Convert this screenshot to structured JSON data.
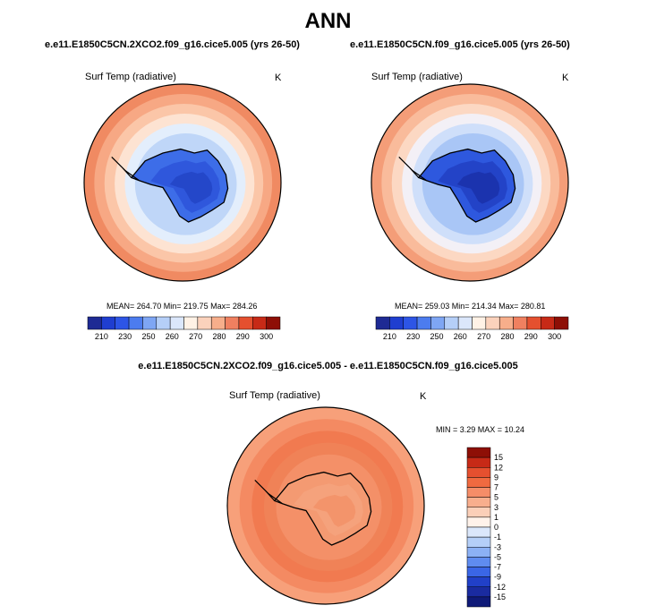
{
  "page": {
    "title": "ANN"
  },
  "chart_data": [
    {
      "type": "heatmap",
      "projection": "south-polar-stereographic",
      "title": "e.e11.E1850C5CN.2XCO2.f09_g16.cice5.005 (yrs 26-50)",
      "variable": "Surf Temp (radiative)",
      "units": "K",
      "stats": {
        "mean": 264.7,
        "min": 219.75,
        "max": 284.26
      },
      "stats_text": "MEAN= 264.70  Min= 219.75  Max= 284.26",
      "levels": [
        210,
        230,
        250,
        260,
        270,
        280,
        290,
        300
      ],
      "level_labels": [
        "210",
        "230",
        "250",
        "260",
        "270",
        "280",
        "290",
        "300"
      ],
      "colorbar_colors": [
        "#1e2a94",
        "#1f3ed0",
        "#2d55e6",
        "#4c7cef",
        "#7ea6f4",
        "#b5cff8",
        "#dbe7fb",
        "#fff2e6",
        "#fbd2bc",
        "#f7ae8b",
        "#f08060",
        "#e5502f",
        "#c72a17",
        "#8e0f06"
      ],
      "colorbar_placement": "bottom",
      "rings": [
        {
          "color": "#f08a62"
        },
        {
          "color": "#f7a884"
        },
        {
          "color": "#fbc6a8"
        },
        {
          "color": "#fde3d2"
        },
        {
          "color": "#e3eefc"
        },
        {
          "color": "#bfd6f8"
        }
      ],
      "continent_colors": [
        "#3d6de8",
        "#2f57dc",
        "#2447c9"
      ]
    },
    {
      "type": "heatmap",
      "projection": "south-polar-stereographic",
      "title": "e.e11.E1850C5CN.f09_g16.cice5.005 (yrs 26-50)",
      "variable": "Surf Temp (radiative)",
      "units": "K",
      "stats": {
        "mean": 259.03,
        "min": 214.34,
        "max": 280.81
      },
      "stats_text": "MEAN= 259.03  Min= 214.34  Max= 280.81",
      "levels": [
        210,
        230,
        250,
        260,
        270,
        280,
        290,
        300
      ],
      "level_labels": [
        "210",
        "230",
        "250",
        "260",
        "270",
        "280",
        "290",
        "300"
      ],
      "colorbar_colors": [
        "#1e2a94",
        "#1f3ed0",
        "#2d55e6",
        "#4c7cef",
        "#7ea6f4",
        "#b5cff8",
        "#dbe7fb",
        "#fff2e6",
        "#fbd2bc",
        "#f7ae8b",
        "#f08060",
        "#e5502f",
        "#c72a17",
        "#8e0f06"
      ],
      "colorbar_placement": "bottom",
      "rings": [
        {
          "color": "#f49d78"
        },
        {
          "color": "#f9bb9b"
        },
        {
          "color": "#fcd8c3"
        },
        {
          "color": "#f3f0f6"
        },
        {
          "color": "#cfdffa"
        },
        {
          "color": "#a9c6f6"
        }
      ],
      "continent_colors": [
        "#2e58de",
        "#2343c7",
        "#1b33ae"
      ]
    },
    {
      "type": "heatmap",
      "projection": "south-polar-stereographic",
      "title": "e.e11.E1850C5CN.2XCO2.f09_g16.cice5.005 - e.e11.E1850C5CN.f09_g16.cice5.005",
      "variable": "Surf Temp (radiative)",
      "units": "K",
      "stats": {
        "min": 3.29,
        "max": 10.24
      },
      "stats_text": "MIN =   3.29 MAX =  10.24",
      "levels": [
        15,
        12,
        9,
        7,
        5,
        3,
        1,
        0,
        -1,
        -3,
        -5,
        -7,
        -9,
        -12,
        -15
      ],
      "level_labels": [
        "15",
        "12",
        "9",
        "7",
        "5",
        "3",
        "1",
        "0",
        "-1",
        "-3",
        "-5",
        "-7",
        "-9",
        "-12",
        "-15"
      ],
      "colorbar_colors": [
        "#8e0f06",
        "#c72a17",
        "#e5502f",
        "#f06a40",
        "#f58d68",
        "#f8ae8d",
        "#fbcfb8",
        "#fff2ea",
        "#dbe7fb",
        "#b5cff8",
        "#8cb1f5",
        "#5f8cf0",
        "#3a66e6",
        "#2140c8",
        "#1a2ba0",
        "#0f1a78"
      ],
      "colorbar_placement": "right",
      "rings": [
        {
          "color": "#f7a07a"
        },
        {
          "color": "#f48a62"
        },
        {
          "color": "#f17a50"
        },
        {
          "color": "#f08257"
        },
        {
          "color": "#f49068"
        }
      ],
      "continent_colors": [
        "#f49a72",
        "#f5a27c",
        "#f3946b"
      ]
    }
  ]
}
